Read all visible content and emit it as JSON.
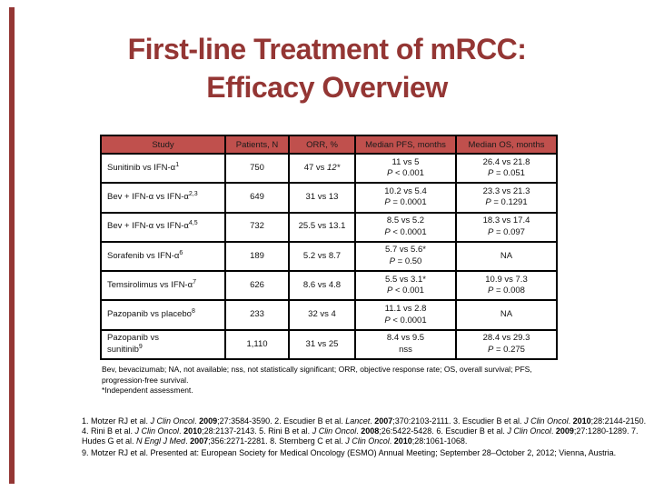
{
  "title": {
    "line1": "First-line Treatment of mRCC:",
    "line2": "Efficacy Overview"
  },
  "colors": {
    "title_text": "#943634",
    "accent_bar": "#943634",
    "table_header_bg": "#C0504D",
    "table_border": "#000000"
  },
  "table": {
    "headers": [
      "Study",
      "Patients, N",
      "ORR, %",
      "Median PFS, months",
      "Median OS, months"
    ],
    "rows": [
      {
        "study": [
          {
            "t": "Sunitinib vs IFN-α"
          },
          {
            "t": "1",
            "s": "sup"
          }
        ],
        "patients": "750",
        "orr": [
          {
            "t": "47 vs "
          },
          {
            "t": "12*",
            "s": "i"
          }
        ],
        "pfs": [
          [
            {
              "t": "11 vs 5"
            }
          ],
          [
            {
              "t": "P",
              "s": "i"
            },
            {
              "t": " < 0.001"
            }
          ]
        ],
        "os": [
          [
            {
              "t": "26.4 vs 21.8"
            }
          ],
          [
            {
              "t": "P",
              "s": "i"
            },
            {
              "t": " = 0.051"
            }
          ]
        ]
      },
      {
        "study": [
          {
            "t": "Bev + IFN-α vs IFN-α"
          },
          {
            "t": "2,3",
            "s": "sup"
          }
        ],
        "patients": "649",
        "orr": [
          {
            "t": "31 vs 13"
          }
        ],
        "pfs": [
          [
            {
              "t": "10.2 vs 5.4"
            }
          ],
          [
            {
              "t": "P",
              "s": "i"
            },
            {
              "t": " = 0.0001"
            }
          ]
        ],
        "os": [
          [
            {
              "t": "23.3 vs 21.3"
            }
          ],
          [
            {
              "t": "P",
              "s": "i"
            },
            {
              "t": " = 0.1291"
            }
          ]
        ]
      },
      {
        "study": [
          {
            "t": "Bev + IFN-α vs IFN-α"
          },
          {
            "t": "4,5",
            "s": "sup"
          }
        ],
        "patients": "732",
        "orr": [
          {
            "t": "25.5 vs 13.1"
          }
        ],
        "pfs": [
          [
            {
              "t": "8.5 vs 5.2"
            }
          ],
          [
            {
              "t": "P",
              "s": "i"
            },
            {
              "t": " < 0.0001"
            }
          ]
        ],
        "os": [
          [
            {
              "t": "18.3 vs 17.4"
            }
          ],
          [
            {
              "t": "P",
              "s": "i"
            },
            {
              "t": " = 0.097"
            }
          ]
        ]
      },
      {
        "study": [
          {
            "t": "Sorafenib vs IFN-α"
          },
          {
            "t": "6",
            "s": "sup"
          }
        ],
        "patients": "189",
        "orr": [
          {
            "t": "5.2 vs 8.7"
          }
        ],
        "pfs": [
          [
            {
              "t": "5.7 vs 5.6*"
            }
          ],
          [
            {
              "t": "P",
              "s": "i"
            },
            {
              "t": " = 0.50"
            }
          ]
        ],
        "os": "NA"
      },
      {
        "study": [
          {
            "t": "Temsirolimus vs IFN-α"
          },
          {
            "t": "7",
            "s": "sup"
          }
        ],
        "patients": "626",
        "orr": [
          {
            "t": "8.6 vs 4.8"
          }
        ],
        "pfs": [
          [
            {
              "t": "5.5 vs 3.1*"
            }
          ],
          [
            {
              "t": "P",
              "s": "i"
            },
            {
              "t": " < 0.001"
            }
          ]
        ],
        "os": [
          [
            {
              "t": "10.9 vs 7.3"
            }
          ],
          [
            {
              "t": "P",
              "s": "i"
            },
            {
              "t": " = 0.008"
            }
          ]
        ]
      },
      {
        "study": [
          {
            "t": "Pazopanib vs placebo"
          },
          {
            "t": "8",
            "s": "sup"
          }
        ],
        "patients": "233",
        "orr": [
          {
            "t": "32 vs 4"
          }
        ],
        "pfs": [
          [
            {
              "t": "11.1 vs 2.8"
            }
          ],
          [
            {
              "t": "P",
              "s": "i"
            },
            {
              "t": " < 0.0001"
            }
          ]
        ],
        "os": "NA"
      },
      {
        "study": [
          [
            {
              "t": "Pazopanib vs"
            }
          ],
          [
            {
              "t": "sunitinib"
            },
            {
              "t": "9",
              "s": "sup"
            }
          ]
        ],
        "patients": "1,110",
        "orr": [
          {
            "t": "31 vs 25"
          }
        ],
        "pfs": [
          [
            {
              "t": "8.4 vs 9.5"
            }
          ],
          [
            {
              "t": "nss"
            }
          ]
        ],
        "os": [
          [
            {
              "t": "28.4 vs 29.3"
            }
          ],
          [
            {
              "t": "P",
              "s": "i"
            },
            {
              "t": " = 0.275"
            }
          ]
        ]
      }
    ]
  },
  "footnotes": {
    "abbreviations": "Bev, bevacizumab; NA, not available; nss, not statistically significant; ORR, objective response rate; OS, overall survival; PFS, progression-free survival.",
    "assessment": "*Independent assessment."
  },
  "references": {
    "p1": [
      {
        "t": "1. Motzer RJ et al. "
      },
      {
        "t": "J Clin Oncol",
        "s": "i"
      },
      {
        "t": ". "
      },
      {
        "t": "2009",
        "s": "b"
      },
      {
        "t": ";27:3584-3590. "
      },
      {
        "t": "2. Escudier B et al. "
      },
      {
        "t": "Lancet",
        "s": "i"
      },
      {
        "t": ". "
      },
      {
        "t": "2007",
        "s": "b"
      },
      {
        "t": ";370:2103-2111. "
      },
      {
        "t": "3. Escudier B et al. "
      },
      {
        "t": "J Clin Oncol",
        "s": "i"
      },
      {
        "t": ". "
      },
      {
        "t": "2010",
        "s": "b"
      },
      {
        "t": ";28:2144-2150. "
      },
      {
        "t": "4. Rini B et al. "
      },
      {
        "t": "J Clin Oncol",
        "s": "i"
      },
      {
        "t": ". "
      },
      {
        "t": "2010",
        "s": "b"
      },
      {
        "t": ";28:2137-2143. "
      },
      {
        "t": "5. Rini B et al. "
      },
      {
        "t": "J Clin Oncol",
        "s": "i"
      },
      {
        "t": ". "
      },
      {
        "t": "2008",
        "s": "b"
      },
      {
        "t": ";26:5422-5428. "
      },
      {
        "t": "6. Escudier B et al. "
      },
      {
        "t": "J Clin Oncol",
        "s": "i"
      },
      {
        "t": ". "
      },
      {
        "t": "2009",
        "s": "b"
      },
      {
        "t": ";27:1280-1289. "
      },
      {
        "t": "7. Hudes G et al. "
      },
      {
        "t": "N Engl J Med",
        "s": "i"
      },
      {
        "t": ". "
      },
      {
        "t": "2007",
        "s": "b"
      },
      {
        "t": ";356:2271-2281. "
      },
      {
        "t": "8. Sternberg C et al. "
      },
      {
        "t": "J Clin Oncol",
        "s": "i"
      },
      {
        "t": ". "
      },
      {
        "t": "2010",
        "s": "b"
      },
      {
        "t": ";28:1061-1068."
      }
    ],
    "p2": [
      {
        "t": "9.  Motzer RJ et al. Presented at: European Society for Medical Oncology (ESMO) Annual Meeting; September 28–October 2, 2012; Vienna, Austria."
      }
    ]
  }
}
